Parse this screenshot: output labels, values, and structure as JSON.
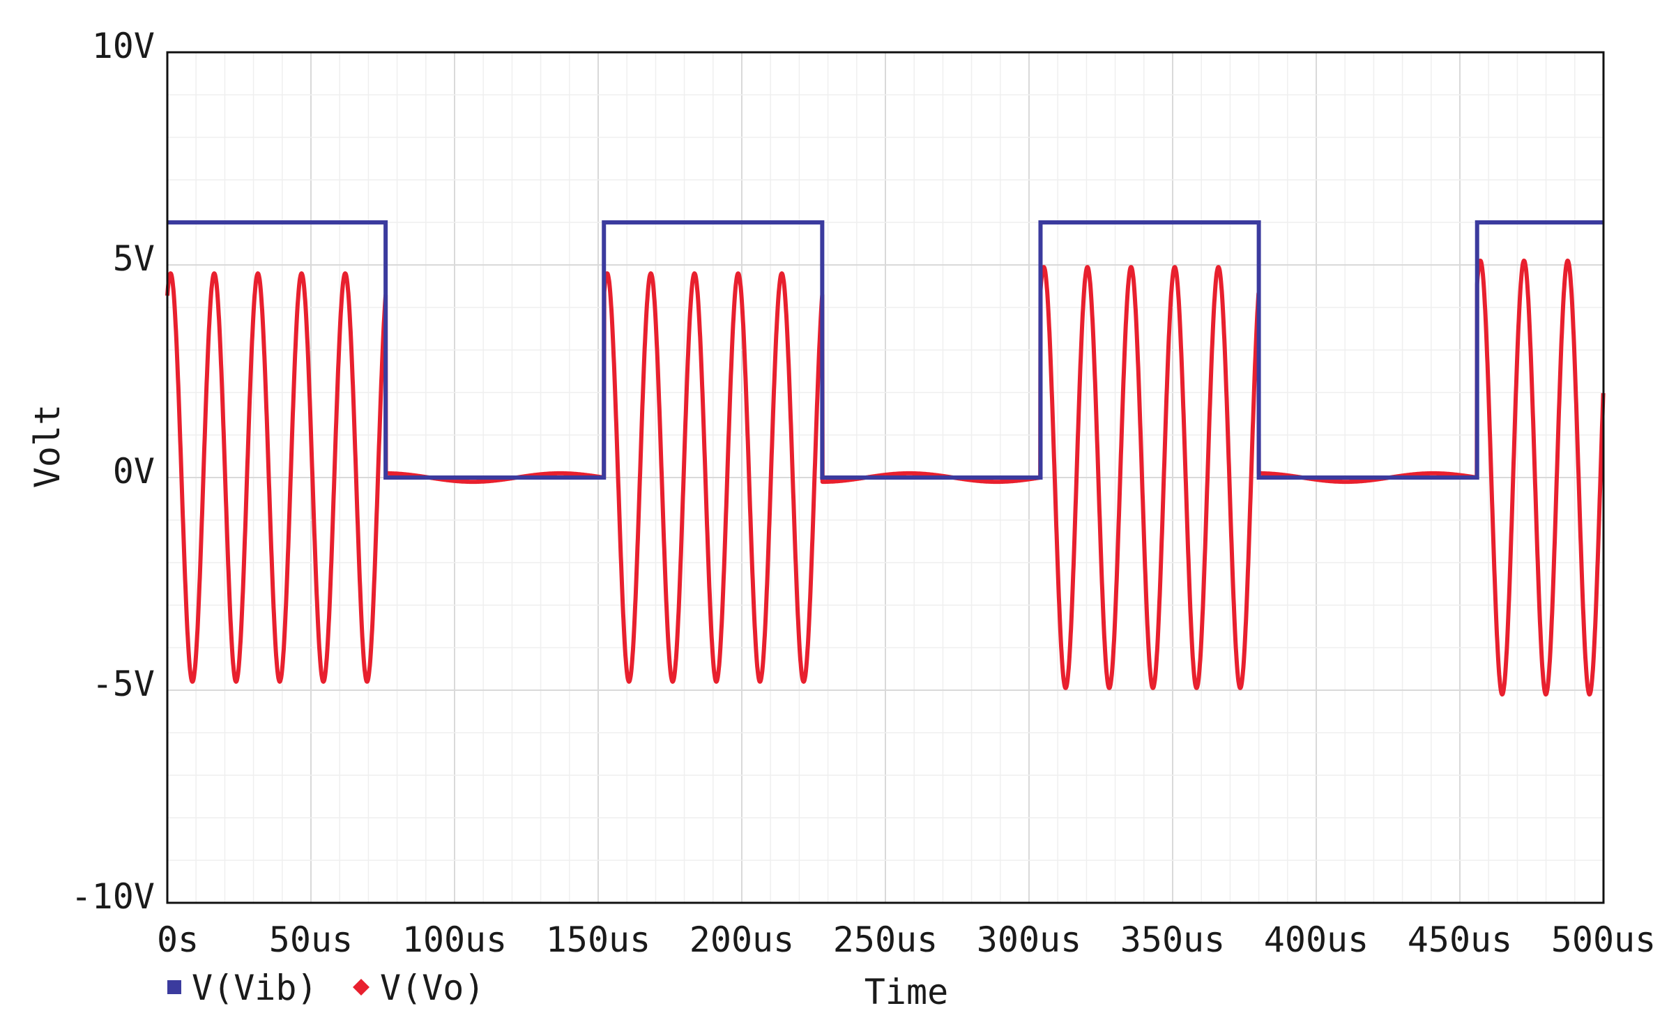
{
  "chart_data": {
    "type": "line",
    "title": "",
    "xlabel": "Time",
    "ylabel": "Volt",
    "xlim": [
      0,
      500
    ],
    "ylim": [
      -10,
      10
    ],
    "x_unit": "us",
    "y_unit": "V",
    "x_ticks": [
      0,
      50,
      100,
      150,
      200,
      250,
      300,
      350,
      400,
      450,
      500
    ],
    "x_tick_labels": [
      "0s",
      "50us",
      "100us",
      "150us",
      "200us",
      "250us",
      "300us",
      "350us",
      "400us",
      "450us",
      "500us"
    ],
    "y_ticks": [
      10,
      5,
      0,
      -5,
      -10
    ],
    "y_tick_labels": [
      "10V",
      "5V",
      "0V",
      "-5V",
      "-10V"
    ],
    "grid": true,
    "legend_position": "bottom-left",
    "series": [
      {
        "name": "V(Vib)",
        "color": "#3b3b9e",
        "marker": "square",
        "shape": "square-wave",
        "high": 6,
        "low": 0,
        "period_us": 152,
        "high_duration_us": 76,
        "x": [
          0,
          76,
          76,
          152,
          152,
          228,
          228,
          304,
          304,
          380,
          380,
          456,
          456,
          500
        ],
        "y": [
          6,
          6,
          0,
          0,
          6,
          6,
          0,
          0,
          6,
          6,
          0,
          0,
          6,
          6
        ]
      },
      {
        "name": "V(Vo)",
        "color": "#e8202e",
        "marker": "diamond",
        "shape": "gated-sine",
        "frequency_khz": 65.8,
        "on_amplitude_v": [
          4.8,
          4.8,
          4.95,
          5.1
        ],
        "off_ripple_v": 0.1,
        "bursts_us": [
          [
            0,
            76
          ],
          [
            152,
            228
          ],
          [
            304,
            380
          ],
          [
            456,
            500
          ]
        ]
      }
    ]
  }
}
